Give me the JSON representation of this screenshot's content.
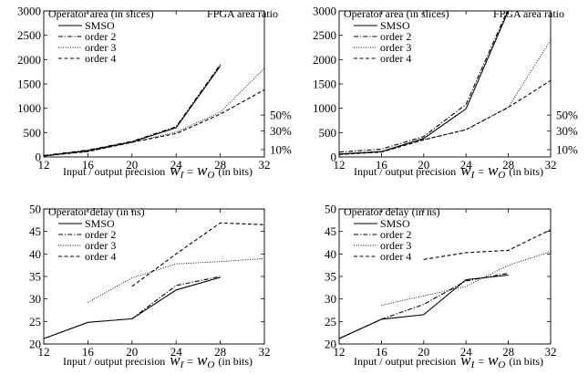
{
  "chart_data": [
    {
      "type": "line",
      "title_left": "Operator area (in slices)",
      "title_right": "FPGA area ratio",
      "xlabel": {
        "prefix": "Input / output precision",
        "var1": "w",
        "sub1": "I",
        "eq": "=",
        "var2": "w",
        "sub2": "O",
        "suffix": "(in bits)"
      },
      "x_ticks": [
        "12",
        "16",
        "20",
        "24",
        "28",
        "32"
      ],
      "y_ticks": [
        "0",
        "500",
        "1000",
        "1500",
        "2000",
        "2500",
        "3000"
      ],
      "y2_ticks": [
        "10%",
        "30%",
        "50%"
      ],
      "xlim": [
        12,
        32
      ],
      "ylim": [
        0,
        3000
      ],
      "y2_tick_values": [
        150,
        530,
        860
      ],
      "series": [
        {
          "name": "SMSO",
          "style": "solid",
          "x": [
            12,
            16,
            20,
            24,
            28
          ],
          "y": [
            20,
            130,
            310,
            600,
            1870
          ]
        },
        {
          "name": "order 2",
          "style": "dashdot",
          "x": [
            12,
            16,
            20,
            24,
            28
          ],
          "y": [
            30,
            140,
            320,
            620,
            1900
          ]
        },
        {
          "name": "order 3",
          "style": "dotted",
          "x": [
            12,
            16,
            20,
            24,
            28,
            32
          ],
          "y": [
            20,
            110,
            300,
            510,
            920,
            1820
          ]
        },
        {
          "name": "order 4",
          "style": "dashed",
          "x": [
            12,
            16,
            20,
            24,
            28,
            32
          ],
          "y": [
            20,
            110,
            300,
            480,
            880,
            1380
          ]
        }
      ]
    },
    {
      "type": "line",
      "title_left": "Operator area (in slices)",
      "title_right": "FPGA area ratio",
      "xlabel": {
        "prefix": "Input / output precision",
        "var1": "w",
        "sub1": "I",
        "eq": "=",
        "var2": "w",
        "sub2": "O",
        "suffix": "(in bits)"
      },
      "x_ticks": [
        "12",
        "16",
        "20",
        "24",
        "28",
        "32"
      ],
      "y_ticks": [
        "0",
        "500",
        "1000",
        "1500",
        "2000",
        "2500",
        "3000"
      ],
      "y2_ticks": [
        "10%",
        "30%",
        "50%"
      ],
      "xlim": [
        12,
        32
      ],
      "ylim": [
        0,
        3000
      ],
      "y2_tick_values": [
        150,
        530,
        860
      ],
      "series": [
        {
          "name": "SMSO",
          "style": "solid",
          "x": [
            12,
            16,
            20,
            24,
            28
          ],
          "y": [
            60,
            110,
            380,
            990,
            3000
          ]
        },
        {
          "name": "order 2",
          "style": "dashdot",
          "x": [
            12,
            16,
            20,
            24,
            28
          ],
          "y": [
            100,
            160,
            420,
            1080,
            3050
          ]
        },
        {
          "name": "order 3",
          "style": "dotted",
          "x": [
            12,
            16,
            20,
            24,
            28,
            32
          ],
          "y": [
            50,
            100,
            360,
            560,
            1020,
            2400
          ]
        },
        {
          "name": "order 4",
          "style": "dashed",
          "x": [
            12,
            16,
            20,
            24,
            28,
            32
          ],
          "y": [
            50,
            100,
            350,
            560,
            1020,
            1570
          ]
        }
      ]
    },
    {
      "type": "line",
      "title_left": "Operator delay (in ns)",
      "xlabel": {
        "prefix": "Input / output precision",
        "var1": "w",
        "sub1": "I",
        "eq": "=",
        "var2": "w",
        "sub2": "O",
        "suffix": "(in bits)"
      },
      "x_ticks": [
        "12",
        "16",
        "20",
        "24",
        "28",
        "32"
      ],
      "y_ticks": [
        "20",
        "25",
        "30",
        "35",
        "40",
        "45",
        "50"
      ],
      "xlim": [
        12,
        32
      ],
      "ylim": [
        20,
        50
      ],
      "series": [
        {
          "name": "SMSO",
          "style": "solid",
          "x": [
            12,
            16,
            20,
            24,
            28
          ],
          "y": [
            21.2,
            24.8,
            25.6,
            32,
            34.8
          ]
        },
        {
          "name": "order 2",
          "style": "dashdot",
          "x": [
            20,
            24,
            28
          ],
          "y": [
            25.6,
            33,
            35
          ]
        },
        {
          "name": "order 3",
          "style": "dotted",
          "x": [
            16,
            20,
            24,
            28,
            32
          ],
          "y": [
            29.2,
            34.7,
            37.8,
            38.3,
            39
          ]
        },
        {
          "name": "order 4",
          "style": "dashed",
          "x": [
            20,
            24,
            28,
            32
          ],
          "y": [
            32.8,
            40,
            46.9,
            46.5
          ]
        }
      ]
    },
    {
      "type": "line",
      "title_left": "Operator delay (in ns)",
      "xlabel": {
        "prefix": "Input / output precision",
        "var1": "w",
        "sub1": "I",
        "eq": "=",
        "var2": "w",
        "sub2": "O",
        "suffix": "(in bits)"
      },
      "x_ticks": [
        "12",
        "16",
        "20",
        "24",
        "28",
        "32"
      ],
      "y_ticks": [
        "20",
        "25",
        "30",
        "35",
        "40",
        "45",
        "50"
      ],
      "xlim": [
        12,
        32
      ],
      "ylim": [
        20,
        50
      ],
      "series": [
        {
          "name": "SMSO",
          "style": "solid",
          "x": [
            12,
            16,
            20,
            24,
            28
          ],
          "y": [
            21.2,
            25.5,
            26.5,
            34.3,
            35.3
          ]
        },
        {
          "name": "order 2",
          "style": "dashdot",
          "x": [
            12,
            16,
            20,
            24,
            28
          ],
          "y": [
            21.2,
            25.5,
            28.8,
            34,
            35.7
          ]
        },
        {
          "name": "order 3",
          "style": "dotted",
          "x": [
            16,
            20,
            24,
            28,
            32
          ],
          "y": [
            28.6,
            30.7,
            32.8,
            37.5,
            40.5
          ]
        },
        {
          "name": "order 4",
          "style": "dashed",
          "x": [
            20,
            24,
            28,
            32
          ],
          "y": [
            38.8,
            40.3,
            40.8,
            45.4
          ]
        }
      ]
    }
  ]
}
